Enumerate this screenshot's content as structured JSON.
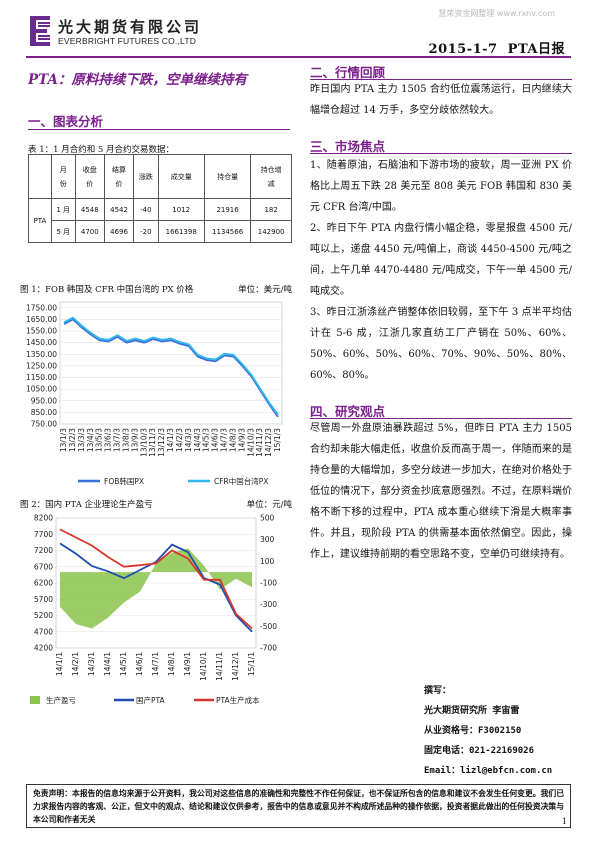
{
  "header": {
    "logo_cn": "光大期货有限公司",
    "logo_en": "EVERBRIGHT FUTURES CO.,LTD",
    "watermark": "慧荣资金网整理 www.rxnv.com",
    "date": "2015-1-7",
    "report_name": "PTA日报"
  },
  "headline": "PTA：原料持续下跌，空单继续持有",
  "sections": {
    "s1": "一、图表分析",
    "s2": "二、行情回顾",
    "s3": "三、市场焦点",
    "s4": "四、研究观点"
  },
  "table": {
    "caption": "表 1：1 月合约和 5 月合约交易数据：",
    "headers": [
      "",
      "月\n份",
      "收盘\n价",
      "结算\n价",
      "涨跌",
      "成交量",
      "持仓量",
      "持仓增\n减"
    ],
    "product": "PTA",
    "rows": [
      [
        "1 月",
        "4548",
        "4542",
        "-40",
        "1012",
        "21916",
        "182"
      ],
      [
        "5 月",
        "4700",
        "4696",
        "-20",
        "1661398",
        "1134566",
        "142900"
      ]
    ]
  },
  "fig1": {
    "caption": "图 1：FOB 韩国及 CFR 中国台湾的 PX 价格",
    "unit": "单位：美元/吨",
    "chart_data": {
      "type": "line",
      "title": "",
      "ylim": [
        750,
        1800
      ],
      "yticks": [
        "1750.00",
        "1650.00",
        "1550.00",
        "1450.00",
        "1350.00",
        "1250.00",
        "1150.00",
        "1050.00",
        "950.00",
        "850.00",
        "750.00"
      ],
      "xticks": [
        "13/1/3",
        "13/2/3",
        "13/3/3",
        "13/4/3",
        "13/5/3",
        "13/6/3",
        "13/7/3",
        "13/8/3",
        "13/9/3",
        "13/10/3",
        "13/11/3",
        "13/12/3",
        "14/1/3",
        "14/2/3",
        "14/3/3",
        "14/4/3",
        "14/5/3",
        "14/6/3",
        "14/7/3",
        "14/8/3",
        "14/9/3",
        "14/10/3",
        "14/11/3",
        "14/12/3",
        "15/1/3"
      ],
      "series": [
        {
          "name": "FOB韩国PX",
          "color": "#3b6fd8",
          "values": [
            1610,
            1650,
            1580,
            1520,
            1470,
            1460,
            1500,
            1450,
            1470,
            1450,
            1480,
            1460,
            1470,
            1440,
            1420,
            1330,
            1300,
            1290,
            1340,
            1330,
            1250,
            1160,
            1040,
            920,
            810
          ]
        },
        {
          "name": "CFR中国台湾PX",
          "color": "#2fb8e8",
          "values": [
            1625,
            1665,
            1595,
            1535,
            1485,
            1475,
            1515,
            1465,
            1485,
            1465,
            1495,
            1475,
            1485,
            1455,
            1435,
            1345,
            1315,
            1305,
            1355,
            1345,
            1265,
            1175,
            1055,
            935,
            830
          ]
        }
      ]
    }
  },
  "fig2": {
    "caption": "图 2：国内 PTA 企业理论生产盈亏",
    "unit": "单位：元/吨",
    "chart_data": {
      "type": "line",
      "title": "",
      "ylim_left": [
        4200,
        8200
      ],
      "ylim_right": [
        -700,
        500
      ],
      "yticks_left": [
        "8200",
        "7700",
        "7200",
        "6700",
        "6200",
        "5700",
        "5200",
        "4700",
        "4200"
      ],
      "yticks_right": [
        "500",
        "300",
        "100",
        "-100",
        "-300",
        "-500",
        "-700"
      ],
      "xticks": [
        "14/1/1",
        "14/2/1",
        "14/3/1",
        "14/4/1",
        "14/5/1",
        "14/6/1",
        "14/7/1",
        "14/8/1",
        "14/9/1",
        "14/10/1",
        "14/11/1",
        "14/12/1",
        "15/1/1"
      ],
      "series": [
        {
          "name": "生产盈亏",
          "color": "#8bc34a",
          "axis": "right",
          "values": [
            -320,
            -480,
            -520,
            -420,
            -280,
            -180,
            80,
            180,
            220,
            60,
            -160,
            -60,
            -140
          ]
        },
        {
          "name": "国产PTA",
          "color": "#1f4eb0",
          "axis": "left",
          "values": [
            7420,
            7100,
            6720,
            6560,
            6350,
            6600,
            6850,
            7380,
            7150,
            6350,
            6150,
            5200,
            4700
          ]
        },
        {
          "name": "PTA生产成本",
          "color": "#d9342b",
          "axis": "left",
          "values": [
            7850,
            7600,
            7350,
            7000,
            6700,
            6750,
            6800,
            7200,
            6950,
            6300,
            6300,
            5250,
            4800
          ]
        }
      ]
    }
  },
  "review": "昨日国内 PTA 主力 1505 合约低位震荡运行，日内继续大幅增仓超过 14 万手，多空分歧依然较大。",
  "focus": [
    "1、随着原油，石脑油和下游市场的疲软，周一亚洲 PX 价格比上周五下跌 28 美元至 808 美元 FOB 韩国和 830 美元 CFR 台湾/中国。",
    "2、昨日下午 PTA 内盘行情小幅企稳，零星报盘 4500 元/吨以上，递盘 4450 元/吨偏上，商谈 4450-4500 元/吨之间，上午几单 4470-4480 元/吨成交，下午一单 4500 元/吨成交。",
    "3、昨日江浙涤丝产销整体依旧较弱，至下午 3 点半平均估计在 5-6 成，江浙几家直纺工厂产销在 50%、60%、50%、60%、50%、60%、70%、90%、50%、80%、60%、80%。"
  ],
  "view": "尽管周一外盘原油暴跌超过 5%，但昨日 PTA 主力 1505 合约却未能大幅走低，收盘价反而高于周一，伴随而来的是持仓量的大幅增加，多空分歧进一步加大，在绝对价格处于低位的情况下，部分资金抄底意愿强烈。不过，在原料端价格不断下移的过程中，PTA 成本重心继续下滑是大概率事件。并且，现阶段 PTA 的供需基本面依然偏空。因此，操作上，建议维持前期的看空思路不变，空单仍可继续持有。",
  "author": {
    "label": "撰写：",
    "dept": "光大期货研究所  李宙雷",
    "cert": "从业资格号：F3002150",
    "phone": "固定电话：021-22169026",
    "email": "Email：lizl@ebfcn.com.cn"
  },
  "disclaimer": "免责声明：本报告的信息均来源于公开资料，我公司对这些信息的准确性和完整性不作任何保证，也不保证所包含的信息和建议不会发生任何变更。我们已力求报告内容的客观、公正，但文中的观点、结论和建议仅供参考，报告中的信息或意见并不构成所述品种的操作依据，投资者据此做出的任何投资决策与本公司和作者无关",
  "page_number": "1"
}
